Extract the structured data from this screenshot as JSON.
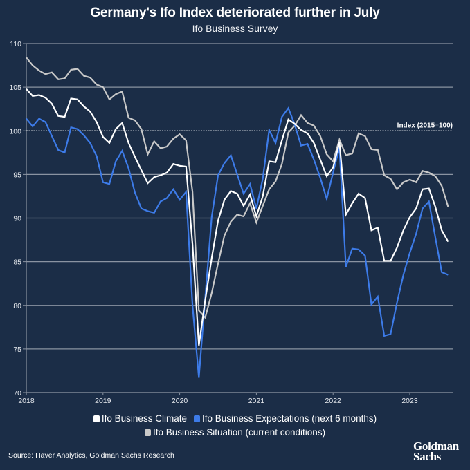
{
  "header": {
    "title": "Germany's Ifo Index deteriorated further in July",
    "subtitle": "Ifo Business Survey"
  },
  "legend": {
    "items": [
      {
        "label": "Ifo Business Climate",
        "color": "#ffffff"
      },
      {
        "label": "Ifo Business Expectations (next 6 months)",
        "color": "#3d7be8"
      },
      {
        "label": "Ifo Business Situation (current conditions)",
        "color": "#c9c9c9"
      }
    ]
  },
  "footer": {
    "source": "Source: Haver Analytics, Goldman Sachs Research",
    "logo_line1": "Goldman",
    "logo_line2": "Sachs"
  },
  "chart_data": {
    "type": "line",
    "title": "Germany's Ifo Index deteriorated further in July",
    "subtitle": "Ifo Business Survey",
    "xlabel": "",
    "ylabel": "",
    "x_start": "2018-01",
    "x_end": "2023-07",
    "frequency": "monthly",
    "xticks": [
      "2018",
      "2019",
      "2020",
      "2021",
      "2022",
      "2023"
    ],
    "xlim": [
      "2018-01",
      "2023-09"
    ],
    "ylim": [
      70,
      110
    ],
    "yticks": [
      70,
      75,
      80,
      85,
      90,
      95,
      100,
      105,
      110
    ],
    "grid": "horizontal",
    "reference_line": {
      "y": 100,
      "label": "Index (2015=100)",
      "style": "dotted"
    },
    "legend_position": "bottom",
    "series": [
      {
        "name": "Ifo Business Climate",
        "color": "#ffffff",
        "values": [
          104.8,
          104.0,
          104.1,
          103.8,
          103.1,
          101.7,
          101.6,
          103.7,
          103.6,
          102.8,
          102.2,
          101.0,
          99.3,
          98.6,
          100.2,
          100.9,
          98.6,
          97.0,
          95.5,
          94.0,
          94.7,
          94.9,
          95.2,
          96.2,
          96.0,
          95.9,
          87.0,
          75.4,
          80.6,
          85.4,
          89.7,
          92.1,
          93.1,
          92.8,
          91.4,
          92.7,
          90.2,
          92.5,
          96.5,
          96.4,
          98.9,
          101.3,
          100.8,
          100.1,
          99.7,
          98.6,
          96.7,
          94.8,
          95.8,
          98.7,
          90.4,
          91.7,
          92.8,
          92.3,
          88.6,
          88.9,
          85.1,
          85.1,
          86.6,
          88.6,
          90.1,
          91.1,
          93.3,
          93.4,
          91.3,
          88.6,
          87.3
        ]
      },
      {
        "name": "Ifo Business Expectations (next 6 months)",
        "color": "#3d7be8",
        "values": [
          101.4,
          100.5,
          101.4,
          101.0,
          99.4,
          97.8,
          97.5,
          100.4,
          100.2,
          99.5,
          98.6,
          97.1,
          94.1,
          93.9,
          96.5,
          97.7,
          95.7,
          92.9,
          91.1,
          90.8,
          90.6,
          91.9,
          92.3,
          93.3,
          92.1,
          93.0,
          80.0,
          71.7,
          80.9,
          90.1,
          94.9,
          96.3,
          97.2,
          95.0,
          92.8,
          93.9,
          91.1,
          94.5,
          100.1,
          98.6,
          101.6,
          102.6,
          100.7,
          98.3,
          98.5,
          96.7,
          94.6,
          92.2,
          95.2,
          98.1,
          84.4,
          86.5,
          86.4,
          85.7,
          80.1,
          81.0,
          76.5,
          76.7,
          80.3,
          83.5,
          86.0,
          88.2,
          91.1,
          91.9,
          87.8,
          83.8,
          83.5
        ]
      },
      {
        "name": "Ifo Business Situation (current conditions)",
        "color": "#c9c9c9",
        "values": [
          108.4,
          107.5,
          106.9,
          106.5,
          106.7,
          105.9,
          106.0,
          107.0,
          107.1,
          106.3,
          106.1,
          105.3,
          105.0,
          103.6,
          104.2,
          104.5,
          101.5,
          101.2,
          100.2,
          97.3,
          98.8,
          98.0,
          98.2,
          99.1,
          99.6,
          98.9,
          93.0,
          79.4,
          78.6,
          81.4,
          84.8,
          88.0,
          89.6,
          90.4,
          90.2,
          91.7,
          89.5,
          91.4,
          93.3,
          94.2,
          96.2,
          99.8,
          100.6,
          101.8,
          100.9,
          100.6,
          99.4,
          97.3,
          96.5,
          99.0,
          97.2,
          97.4,
          99.7,
          99.4,
          97.9,
          97.8,
          94.9,
          94.5,
          93.3,
          94.1,
          94.4,
          94.1,
          95.4,
          95.2,
          94.8,
          93.7,
          91.3
        ]
      }
    ]
  }
}
